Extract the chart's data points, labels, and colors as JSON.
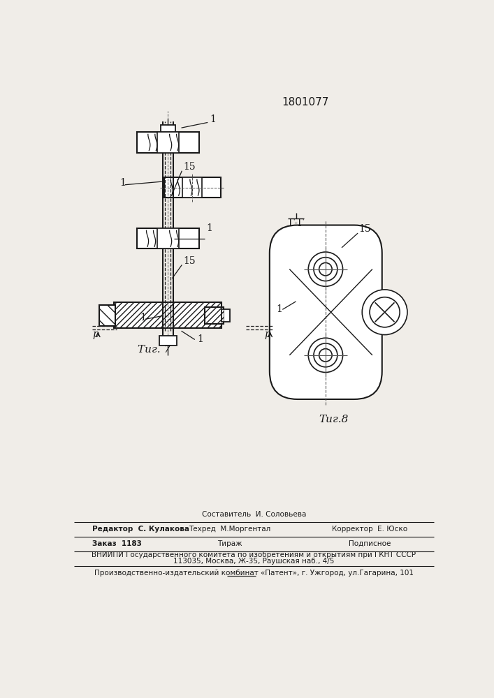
{
  "patent_number": "1801077",
  "bg_color": "#f0ede8",
  "line_color": "#1a1a1a",
  "fig7_caption": "Τиг. 7",
  "fig8_caption": "Τиг.8",
  "section_label": "Г-Г",
  "footer_sestavitel": "Составитель  И. Соловьева",
  "footer_redaktor": "Редактор  С. Кулакова",
  "footer_tehred": "Техред  М.Моргентал",
  "footer_korrektor": "Корректор  Е. Юско",
  "footer_zakaz": "Заказ  1183",
  "footer_tirazh": "Тираж",
  "footer_podpisnoe": "Подписное",
  "footer_vniipи": "ВНИИПИ Государственного комитета по изобретениям и открытиям при ГКНТ СССР",
  "footer_addr": "113035, Москва, Ж-35, Раушская наб., 4/5",
  "footer_patent": "Производственно-издательский комбинат «Патент», г. Ужгород, ул.Гагарина, 101"
}
